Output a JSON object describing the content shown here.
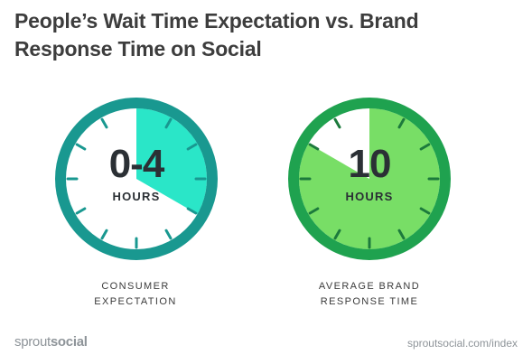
{
  "title": "People’s Wait Time Expectation vs. Brand Response Time on Social",
  "chart_data": {
    "type": "pie",
    "unit": "HOURS",
    "dials": [
      {
        "value_label": "0-4",
        "unit": "HOURS",
        "caption_lines": [
          "CONSUMER",
          "EXPECTATION"
        ],
        "fill_hours": 4,
        "total_hours": 12,
        "colors": {
          "rim": "#199890",
          "face": "#ffffff",
          "fill": "#2ae6c8",
          "tick": "#199890"
        }
      },
      {
        "value_label": "10",
        "unit": "HOURS",
        "caption_lines": [
          "AVERAGE BRAND",
          "RESPONSE TIME"
        ],
        "fill_hours": 10,
        "total_hours": 12,
        "colors": {
          "rim": "#1fa24f",
          "face": "#ffffff",
          "fill": "#78de66",
          "tick": "#1c7a3c"
        }
      }
    ]
  },
  "footer": {
    "brand_light": "sprout",
    "brand_bold": "social",
    "url": "sproutsocial.com/index"
  }
}
